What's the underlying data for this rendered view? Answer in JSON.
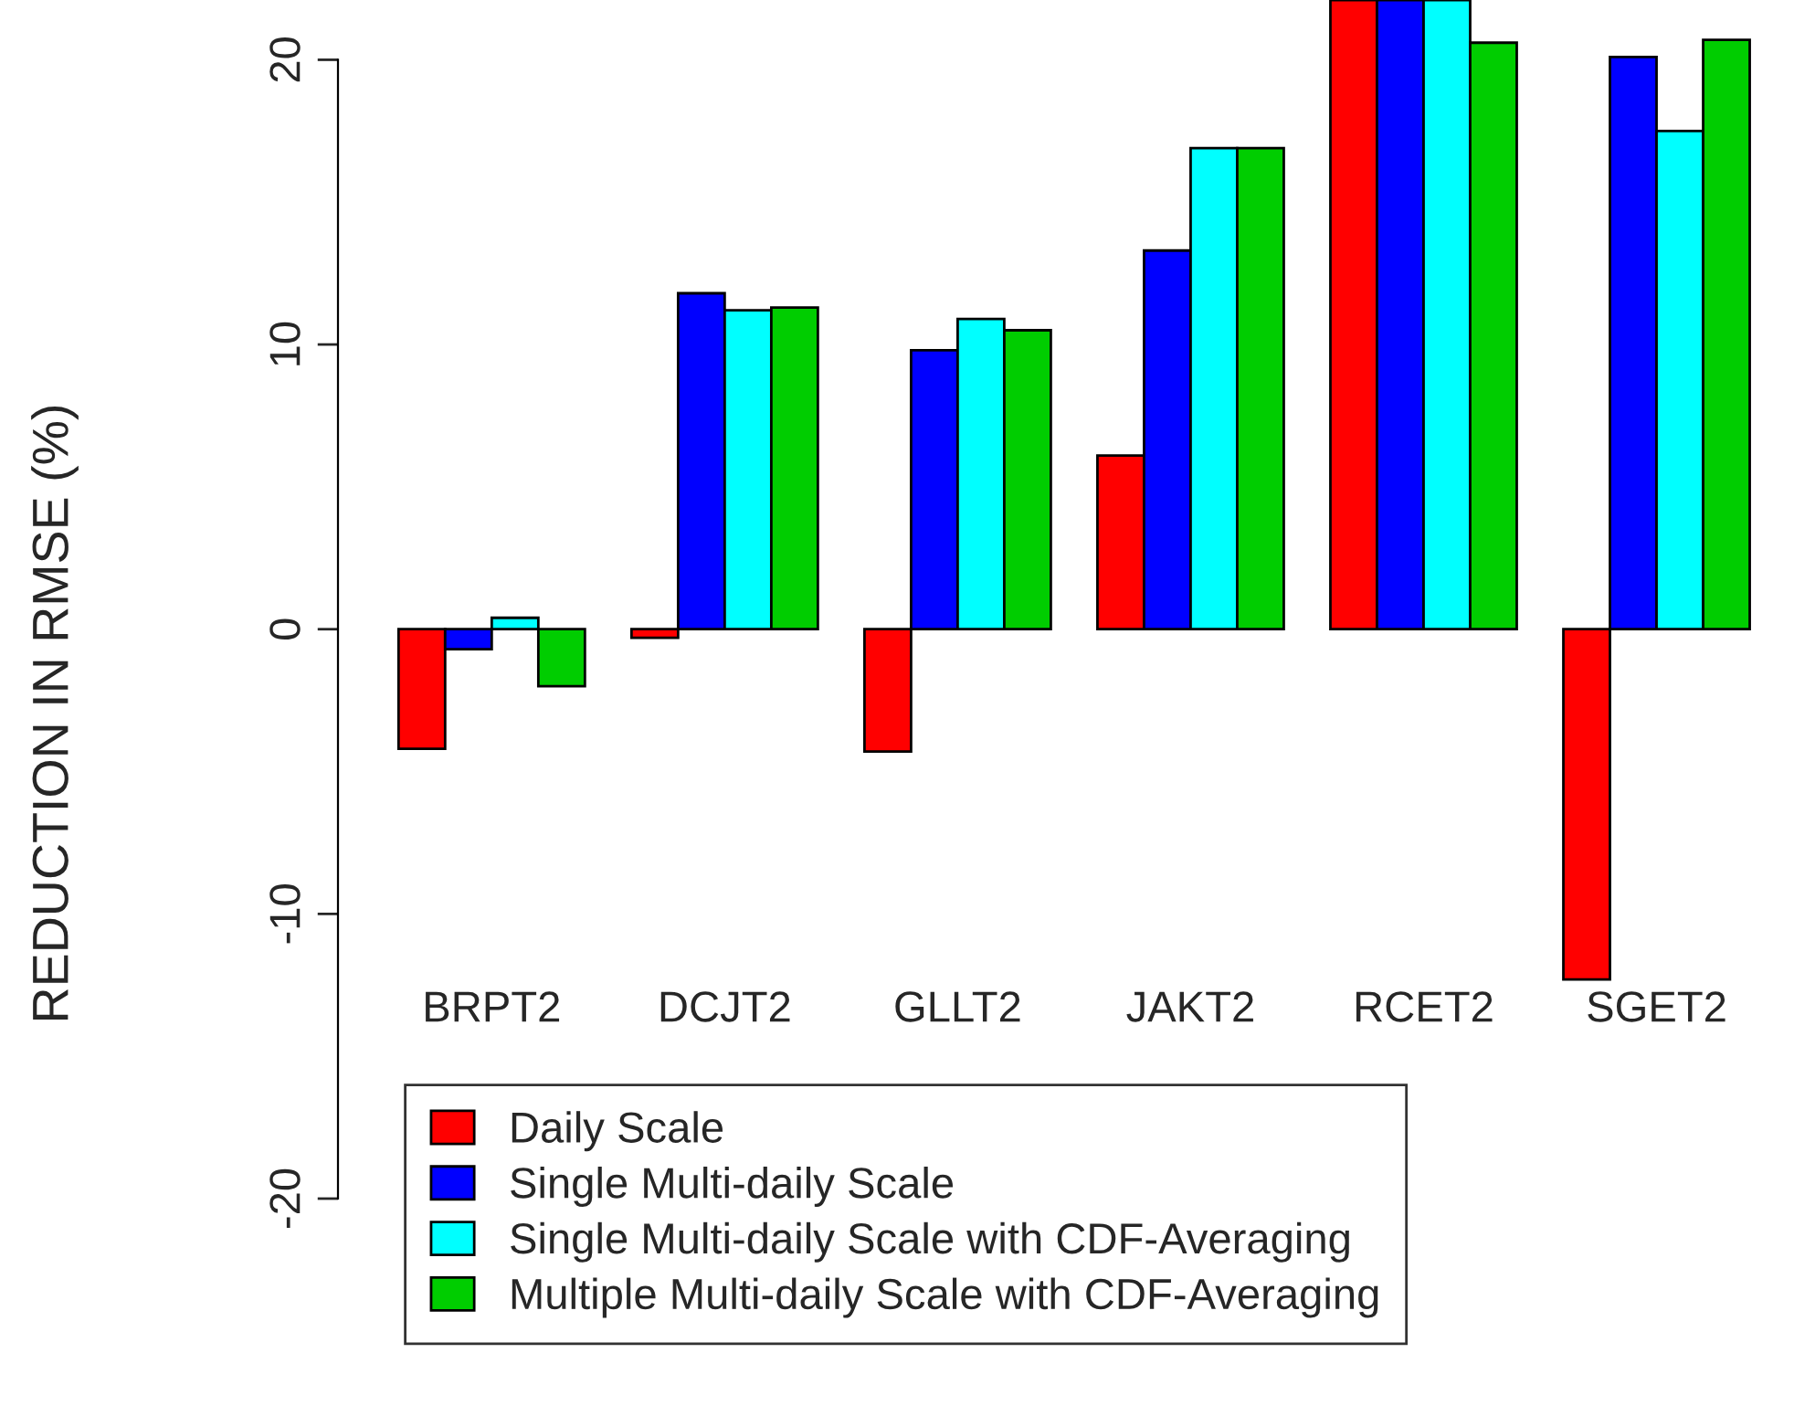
{
  "chart_data": {
    "type": "bar",
    "ylabel": "REDUCTION IN RMSE (%)",
    "categories": [
      "BRPT2",
      "DCJT2",
      "GLLT2",
      "JAKT2",
      "RCET2",
      "SGET2"
    ],
    "series": [
      {
        "name": "Daily Scale",
        "color": "#ff0000",
        "values": [
          -4.2,
          -0.3,
          -4.3,
          6.1,
          22.1,
          -12.3
        ]
      },
      {
        "name": "Single Multi-daily Scale",
        "color": "#0000ff",
        "values": [
          -0.7,
          11.8,
          9.8,
          13.3,
          22.1,
          20.1
        ]
      },
      {
        "name": "Single Multi-daily Scale with CDF-Averaging",
        "color": "#00ffff",
        "values": [
          0.4,
          11.2,
          10.9,
          16.9,
          22.1,
          17.5
        ]
      },
      {
        "name": "Multiple Multi-daily Scale with CDF-Averaging",
        "color": "#00cd00",
        "values": [
          -2.0,
          11.3,
          10.5,
          16.9,
          20.6,
          20.7
        ]
      }
    ],
    "ylim": [
      -20,
      22.1
    ],
    "yticks": [
      -20,
      -10,
      0,
      10,
      20
    ],
    "grid": false,
    "legend": "bottom"
  }
}
